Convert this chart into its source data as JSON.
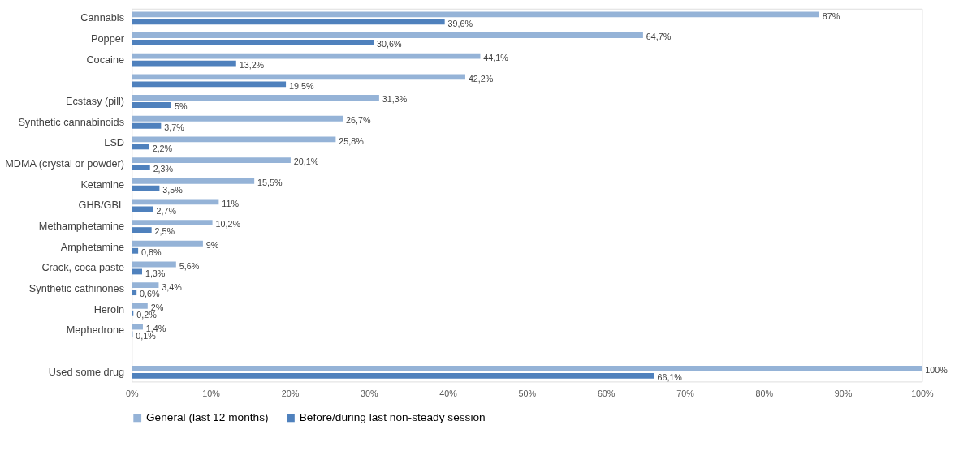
{
  "chart_data": {
    "type": "bar",
    "orientation": "horizontal",
    "categories": [
      "Cannabis",
      "Popper",
      "Cocaine",
      null,
      "Ecstasy (pill)",
      "Synthetic cannabinoids",
      "LSD",
      "MDMA (crystal or powder)",
      "Ketamine",
      "GHB/GBL",
      "Methamphetamine",
      "Amphetamine",
      "Crack, coca paste",
      "Synthetic cathinones",
      "Heroin",
      "Mephedrone",
      null,
      "Used some drug"
    ],
    "series": [
      {
        "name": "General (last 12 months)",
        "color": "#95b3d7",
        "values": [
          87,
          64.7,
          44.1,
          42.2,
          31.3,
          26.7,
          25.8,
          20.1,
          15.5,
          11,
          10.2,
          9,
          5.6,
          3.4,
          2,
          1.4,
          null,
          100
        ],
        "value_labels": [
          "87%",
          "64,7%",
          "44,1%",
          "42,2%",
          "31,3%",
          "26,7%",
          "25,8%",
          "20,1%",
          "15,5%",
          "11%",
          "10,2%",
          "9%",
          "5,6%",
          "3,4%",
          "2%",
          "1,4%",
          null,
          "100%"
        ]
      },
      {
        "name": "Before/during last non-steady session",
        "color": "#4f81bd",
        "values": [
          39.6,
          30.6,
          13.2,
          19.5,
          5,
          3.7,
          2.2,
          2.3,
          3.5,
          2.7,
          2.5,
          0.8,
          1.3,
          0.6,
          0.2,
          0.1,
          null,
          66.1
        ],
        "value_labels": [
          "39,6%",
          "30,6%",
          "13,2%",
          "19,5%",
          "5%",
          "3,7%",
          "2,2%",
          "2,3%",
          "3,5%",
          "2,7%",
          "2,5%",
          "0,8%",
          "1,3%",
          "0,6%",
          "0,2%",
          "0,1%",
          null,
          "66,1%"
        ]
      }
    ],
    "xlim": [
      0,
      100
    ],
    "xticks": [
      {
        "value": 0,
        "label": "0%"
      },
      {
        "value": 10,
        "label": "10%"
      },
      {
        "value": 20,
        "label": "20%"
      },
      {
        "value": 30,
        "label": "30%"
      },
      {
        "value": 40,
        "label": "40%"
      },
      {
        "value": 50,
        "label": "50%"
      },
      {
        "value": 60,
        "label": "60%"
      },
      {
        "value": 70,
        "label": "70%"
      },
      {
        "value": 80,
        "label": "80%"
      },
      {
        "value": 90,
        "label": "90%"
      },
      {
        "value": 100,
        "label": "100%"
      }
    ],
    "grid": false,
    "legend": "bottom"
  }
}
